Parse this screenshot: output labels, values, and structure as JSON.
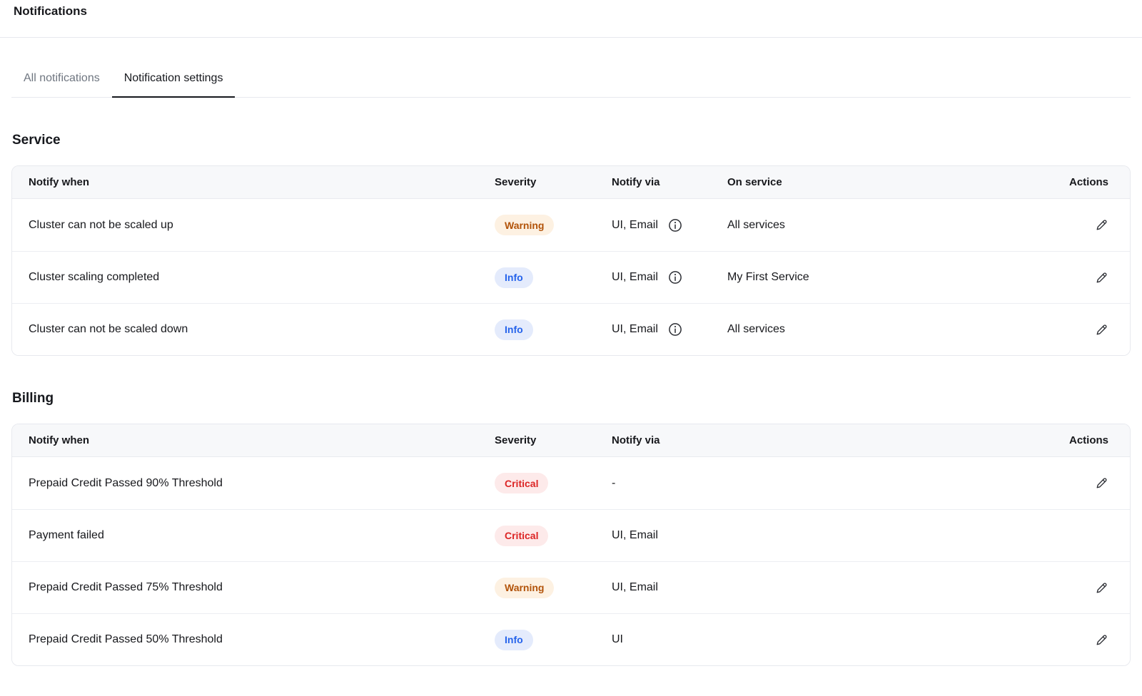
{
  "page": {
    "title": "Notifications"
  },
  "tabs": [
    {
      "label": "All notifications",
      "active": false
    },
    {
      "label": "Notification settings",
      "active": true
    }
  ],
  "sections": [
    {
      "title": "Service",
      "columns": [
        "Notify when",
        "Severity",
        "Notify via",
        "On service",
        "Actions"
      ],
      "rows": [
        {
          "notify_when": "Cluster can not be scaled up",
          "severity": "Warning",
          "notify_via": "UI, Email",
          "has_info_icon": true,
          "on_service": "All services",
          "has_edit": true
        },
        {
          "notify_when": "Cluster scaling completed",
          "severity": "Info",
          "notify_via": "UI, Email",
          "has_info_icon": true,
          "on_service": "My First Service",
          "has_edit": true
        },
        {
          "notify_when": "Cluster can not be scaled down",
          "severity": "Info",
          "notify_via": "UI, Email",
          "has_info_icon": true,
          "on_service": "All services",
          "has_edit": true
        }
      ]
    },
    {
      "title": "Billing",
      "columns": [
        "Notify when",
        "Severity",
        "Notify via",
        "Actions"
      ],
      "rows": [
        {
          "notify_when": "Prepaid Credit Passed 90% Threshold",
          "severity": "Critical",
          "notify_via": "-",
          "has_info_icon": false,
          "has_edit": true
        },
        {
          "notify_when": "Payment failed",
          "severity": "Critical",
          "notify_via": "UI, Email",
          "has_info_icon": false,
          "has_edit": false
        },
        {
          "notify_when": "Prepaid Credit Passed 75% Threshold",
          "severity": "Warning",
          "notify_via": "UI, Email",
          "has_info_icon": false,
          "has_edit": true
        },
        {
          "notify_when": "Prepaid Credit Passed 50% Threshold",
          "severity": "Info",
          "notify_via": "UI",
          "has_info_icon": false,
          "has_edit": true
        }
      ]
    }
  ],
  "severity_styles": {
    "Warning": {
      "text_color": "#b25309",
      "bg_color": "#fdf1e2"
    },
    "Info": {
      "text_color": "#2563eb",
      "bg_color": "#e4ebfc"
    },
    "Critical": {
      "text_color": "#dc2626",
      "bg_color": "#fdeaea"
    }
  },
  "icons": {
    "notify_via_detail": "info-circle-icon",
    "row_action": "pencil-edit-icon"
  },
  "ui_colors": {
    "table_header_bg": "#f7f8fa",
    "table_border": "#e7e9ee",
    "active_tab_underline": "#16181d",
    "inactive_tab_text": "#6f7680",
    "text": "#17181c"
  }
}
